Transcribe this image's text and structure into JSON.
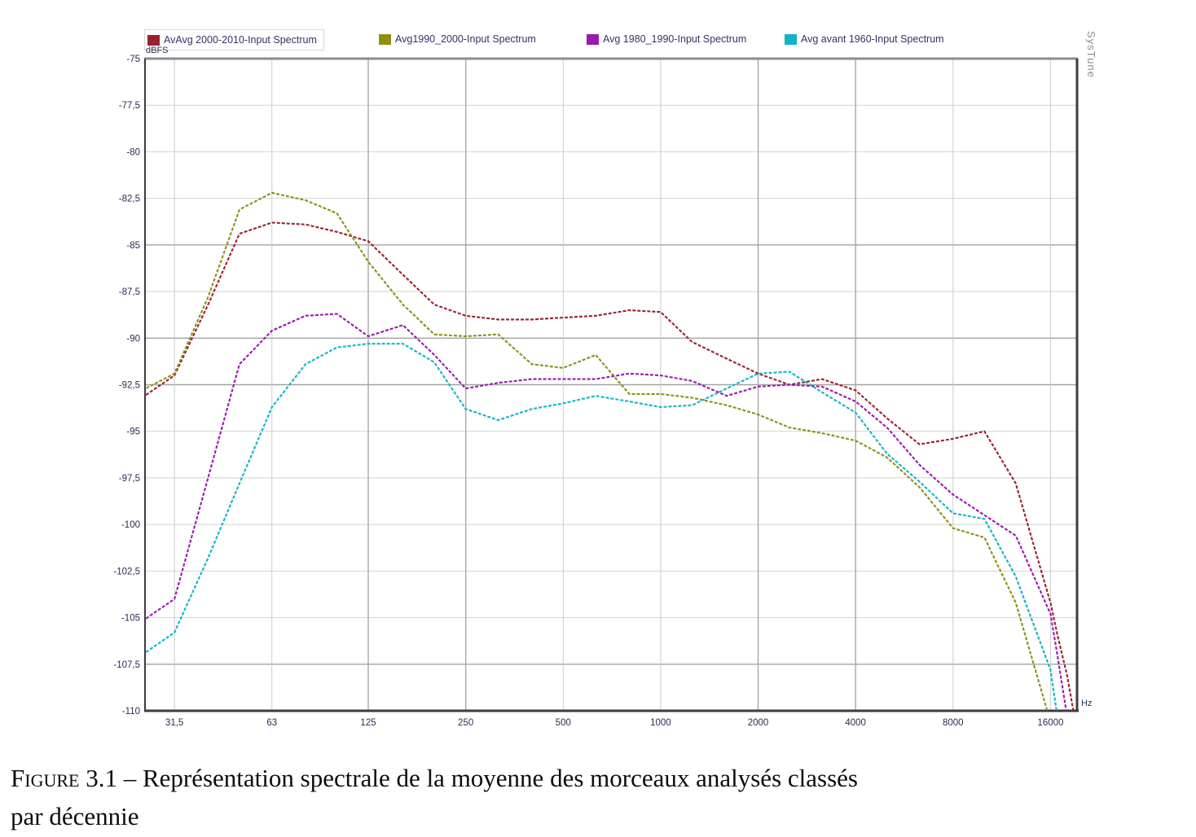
{
  "legend": {
    "items": [
      {
        "label": "AvAvg 2000-2010-Input Spectrum",
        "color": "#992031"
      },
      {
        "label": "Avg1990_2000-Input Spectrum",
        "color": "#8f9016"
      },
      {
        "label": "Avg 1980_1990-Input Spectrum",
        "color": "#9d18ae"
      },
      {
        "label": "Avg avant 1960-Input Spectrum",
        "color": "#12b5c5"
      }
    ]
  },
  "watermark": {
    "text": "SysTune"
  },
  "caption": {
    "label": "Figure",
    "number": "3.1",
    "dash": "–",
    "line1": "Représentation spectrale de la moyenne des morceaux analysés classés",
    "line2": "par décennie"
  },
  "chart_data": {
    "type": "line",
    "x_scale": "log",
    "xlabel": "Hz",
    "ylabel": "dBFS",
    "ylim": [
      -110,
      -75
    ],
    "grid": true,
    "legend_position": "top",
    "y_ticks": {
      "values": [
        -75,
        -77.5,
        -80,
        -82.5,
        -85,
        -87.5,
        -90,
        -92.5,
        -95,
        -97.5,
        -100,
        -102.5,
        -105,
        -107.5,
        -110
      ],
      "labels": [
        "-75",
        "-77,5",
        "-80",
        "-82,5",
        "-85",
        "-87,5",
        "-90",
        "-92,5",
        "-95",
        "-97,5",
        "-100",
        "-102,5",
        "-105",
        "-107,5",
        "-110"
      ],
      "strong": [
        -85,
        -90,
        -92.5,
        -107.5
      ]
    },
    "x_ticks": {
      "values": [
        31.5,
        63,
        125,
        250,
        500,
        1000,
        2000,
        4000,
        8000,
        16000
      ],
      "labels": [
        "31,5",
        "63",
        "125",
        "250",
        "500",
        "1000",
        "2000",
        "4000",
        "8000",
        "16000"
      ],
      "strong": [
        125,
        250,
        2000,
        4000
      ]
    },
    "x": [
      25,
      31.5,
      40,
      50,
      63,
      80,
      100,
      125,
      160,
      200,
      250,
      315,
      400,
      500,
      630,
      800,
      1000,
      1250,
      1600,
      2000,
      2500,
      3150,
      4000,
      5000,
      6300,
      8000,
      10000,
      12500,
      16000,
      16800,
      18000,
      19000
    ],
    "series": [
      {
        "name": "AvAvg 2000-2010-Input Spectrum",
        "color": "#992031",
        "values": [
          -93.2,
          -92.0,
          -88.2,
          -84.4,
          -83.8,
          -83.9,
          -84.3,
          -84.8,
          -86.6,
          -88.2,
          -88.8,
          -89.0,
          -89.0,
          -88.9,
          -88.8,
          -88.5,
          -88.6,
          -90.2,
          -91.1,
          -91.9,
          -92.5,
          -92.2,
          -92.8,
          -94.3,
          -95.7,
          -95.4,
          -95.0,
          -97.8,
          -104.2,
          -105.9,
          -108.1,
          -110.4
        ]
      },
      {
        "name": "Avg1990_2000-Input Spectrum",
        "color": "#8f9016",
        "values": [
          -92.8,
          -91.9,
          -87.8,
          -83.1,
          -82.2,
          -82.6,
          -83.3,
          -85.9,
          -88.2,
          -89.8,
          -89.9,
          -89.8,
          -91.4,
          -91.6,
          -90.9,
          -93.0,
          -93.0,
          -93.2,
          -93.6,
          -94.1,
          -94.8,
          -95.1,
          -95.5,
          -96.4,
          -98.0,
          -100.2,
          -100.7,
          -104.2,
          -110.6,
          null,
          null,
          null
        ]
      },
      {
        "name": "Avg 1980_1990-Input Spectrum",
        "color": "#9d18ae",
        "values": [
          -105.2,
          -104.0,
          -97.5,
          -91.4,
          -89.6,
          -88.8,
          -88.7,
          -89.9,
          -89.3,
          -90.9,
          -92.7,
          -92.4,
          -92.2,
          -92.2,
          -92.2,
          -91.9,
          -92.0,
          -92.3,
          -93.1,
          -92.6,
          -92.5,
          -92.6,
          -93.4,
          -94.8,
          -96.8,
          -98.4,
          -99.5,
          -100.6,
          -104.8,
          -107.0,
          -110.3,
          null
        ]
      },
      {
        "name": "Avg avant 1960-Input Spectrum",
        "color": "#12b5c5",
        "values": [
          -107.0,
          -105.8,
          -101.8,
          -97.8,
          -93.7,
          -91.4,
          -90.5,
          -90.3,
          -90.3,
          -91.3,
          -93.8,
          -94.4,
          -93.8,
          -93.5,
          -93.1,
          -93.4,
          -93.7,
          -93.6,
          -92.7,
          -91.9,
          -91.8,
          -92.9,
          -94.0,
          -96.2,
          -97.7,
          -99.4,
          -99.7,
          -102.8,
          -107.8,
          -110.3,
          null,
          null
        ]
      }
    ]
  }
}
